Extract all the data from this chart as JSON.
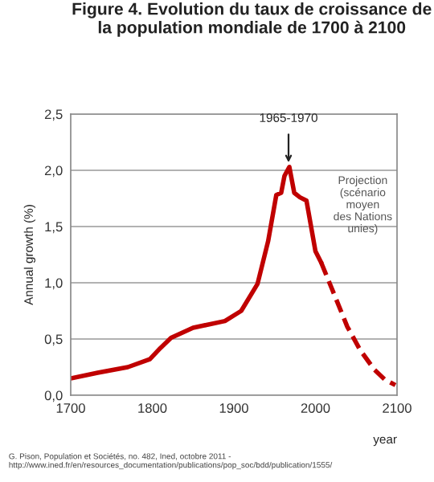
{
  "chart_data": {
    "type": "line",
    "title": "Figure 4. Evolution du taux de croissance de\nla population mondiale de 1700 à 2100",
    "xlabel": "year",
    "ylabel": "Annual growth (%)",
    "xlim": [
      1700,
      2100
    ],
    "xticks": [
      1700,
      1800,
      1900,
      2000,
      2100
    ],
    "ylim": [
      0,
      2.5
    ],
    "yticks": [
      {
        "value": 0,
        "label": "0,0"
      },
      {
        "value": 0.5,
        "label": "0,5"
      },
      {
        "value": 1,
        "label": "1,0"
      },
      {
        "value": 1.5,
        "label": "1,5"
      },
      {
        "value": 2,
        "label": "2,0"
      },
      {
        "value": 2.5,
        "label": "2,5"
      }
    ],
    "grid": "y",
    "legend": false,
    "series": [
      {
        "color": "#c00000",
        "line_style": "solid",
        "x": [
          1700,
          1733,
          1770,
          1797,
          1810,
          1823,
          1850,
          1889,
          1909,
          1929,
          1942,
          1952,
          1958,
          1962,
          1968,
          1974,
          1981,
          1989,
          2000,
          2007
        ],
        "values": [
          0.15,
          0.2,
          0.25,
          0.32,
          0.42,
          0.51,
          0.6,
          0.66,
          0.75,
          0.99,
          1.37,
          1.78,
          1.8,
          1.95,
          2.03,
          1.8,
          1.76,
          1.73,
          1.28,
          1.18
        ]
      },
      {
        "color": "#c00000",
        "line_style": "dashed",
        "x": [
          2007,
          2020,
          2039,
          2055,
          2072,
          2085,
          2098
        ],
        "values": [
          1.18,
          0.95,
          0.61,
          0.4,
          0.23,
          0.14,
          0.09
        ]
      }
    ],
    "annotations": [
      {
        "text": "1965-1970",
        "x": 1967,
        "y": 2.03
      },
      "Projection\n(scénario\nmoyen\ndes Nations\nunies)",
      "G. Pison, Population et Sociétés, no. 482, Ined, octobre 2011 -\nhttp://www.ined.fr/en/resources_documentation/publications/pop_soc/bdd/publication/1555/"
    ]
  }
}
